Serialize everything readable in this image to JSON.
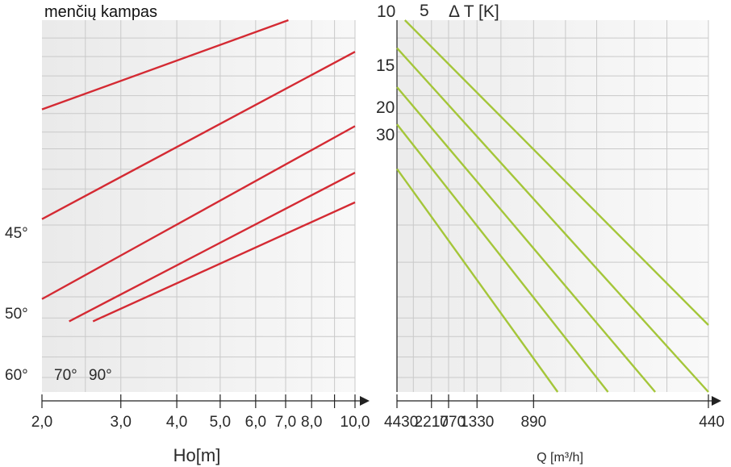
{
  "chart_data": [
    {
      "type": "line",
      "title": "menčių kampas",
      "xlabel": "Ho[m]",
      "ylabel": "",
      "x_scale": "log",
      "xlim": [
        2.0,
        10.0
      ],
      "x_tick_labels": [
        "2,0",
        "3,0",
        "4,0",
        "5,0",
        "6,0",
        "7,0",
        "8,0",
        "10,0"
      ],
      "x_ticks": [
        2,
        3,
        4,
        5,
        6,
        7,
        8,
        10
      ],
      "grid": true,
      "series": [
        {
          "name": "45°",
          "x": [
            2.0,
            7.1
          ],
          "y": [
            0.76,
            1.0
          ]
        },
        {
          "name": "50°",
          "x": [
            2.0,
            10.0
          ],
          "y": [
            0.465,
            0.915
          ]
        },
        {
          "name": "60°",
          "x": [
            2.0,
            10.0
          ],
          "y": [
            0.25,
            0.715
          ]
        },
        {
          "name": "70°",
          "x": [
            2.3,
            10.0
          ],
          "y": [
            0.19,
            0.59
          ]
        },
        {
          "name": "90°",
          "x": [
            2.6,
            10.0
          ],
          "y": [
            0.19,
            0.51
          ]
        }
      ]
    },
    {
      "type": "line",
      "title": "Δ T [K]",
      "xlabel": "Q [m³/h]",
      "ylabel": "",
      "x_scale": "reciprocal",
      "xlim": [
        4430,
        440
      ],
      "x_tick_labels": [
        "4430",
        "2210",
        "1770",
        "1330",
        "890",
        "440"
      ],
      "x_ticks": [
        4430,
        2210,
        1770,
        1330,
        890,
        440
      ],
      "grid": true,
      "series": [
        {
          "name": "5",
          "x": [
            3600,
            440
          ],
          "y": [
            1.0,
            0.18
          ]
        },
        {
          "name": "10",
          "x": [
            4430,
            440
          ],
          "y": [
            0.925,
            0.0
          ]
        },
        {
          "name": "15",
          "x": [
            4430,
            520
          ],
          "y": [
            0.82,
            0.0
          ]
        },
        {
          "name": "20",
          "x": [
            4430,
            620
          ],
          "y": [
            0.72,
            0.0
          ]
        },
        {
          "name": "30",
          "x": [
            4430,
            780
          ],
          "y": [
            0.6,
            0.0
          ]
        }
      ]
    }
  ]
}
